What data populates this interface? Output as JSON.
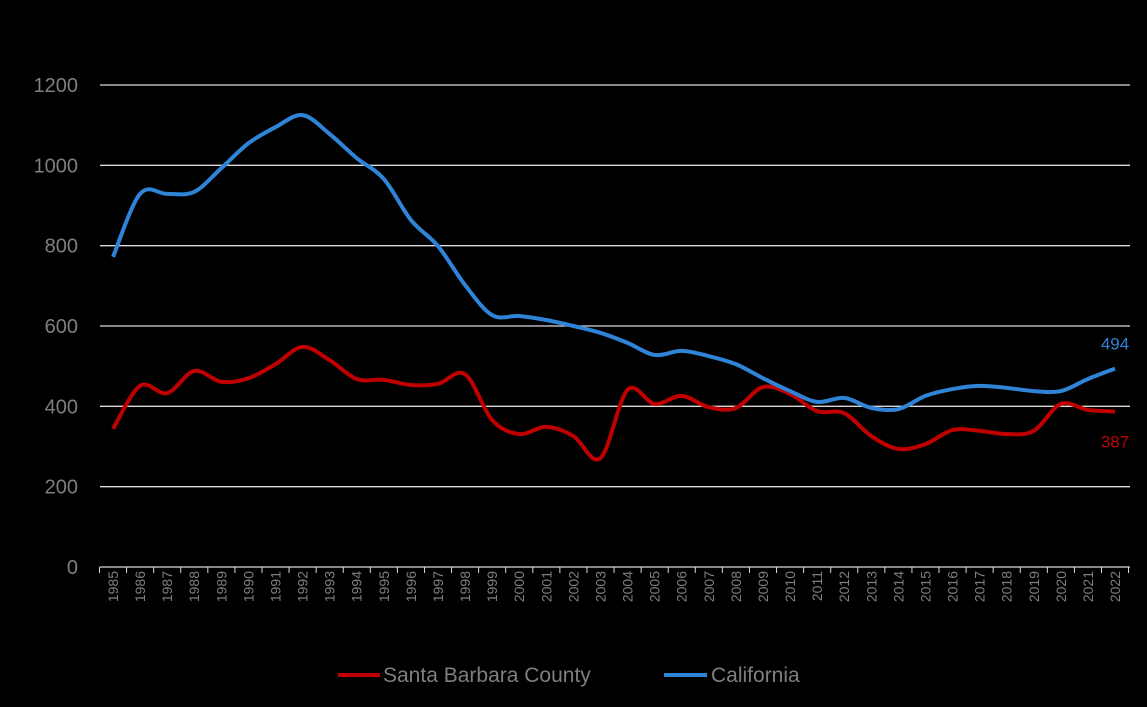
{
  "chart_data": {
    "type": "line",
    "title": "",
    "xlabel": "",
    "ylabel": "",
    "ylim": [
      0,
      1200
    ],
    "yticks": [
      0,
      200,
      400,
      600,
      800,
      1000,
      1200
    ],
    "ytick_labels": [
      "0",
      "200",
      "400",
      "600",
      "800",
      "1000",
      "1200"
    ],
    "grid": true,
    "legend_position": "bottom",
    "x": [
      "1985",
      "1986",
      "1987",
      "1988",
      "1989",
      "1990",
      "1991",
      "1992",
      "1993",
      "1994",
      "1995",
      "1996",
      "1997",
      "1998",
      "1999",
      "2000",
      "2001",
      "2002",
      "2003",
      "2004",
      "2005",
      "2006",
      "2007",
      "2008",
      "2009",
      "2010",
      "2011",
      "2012",
      "2013",
      "2014",
      "2015",
      "2016",
      "2017",
      "2018",
      "2019",
      "2020",
      "2021",
      "2022"
    ],
    "series": [
      {
        "name": "Santa Barbara County",
        "color": "#c00000",
        "values": [
          344,
          451,
          433,
          488,
          461,
          470,
          505,
          548,
          515,
          468,
          466,
          453,
          456,
          480,
          366,
          331,
          349,
          326,
          271,
          441,
          406,
          426,
          398,
          396,
          448,
          431,
          388,
          383,
          326,
          294,
          306,
          341,
          339,
          331,
          339,
          406,
          391,
          387
        ],
        "end_label": "387"
      },
      {
        "name": "California",
        "color": "#2f84d8",
        "values": [
          772,
          929,
          929,
          934,
          993,
          1055,
          1095,
          1125,
          1078,
          1018,
          966,
          864,
          799,
          702,
          627,
          625,
          615,
          600,
          583,
          558,
          528,
          538,
          525,
          505,
          470,
          438,
          411,
          421,
          396,
          393,
          426,
          443,
          451,
          446,
          438,
          438,
          468,
          494
        ],
        "end_label": "494"
      }
    ]
  }
}
